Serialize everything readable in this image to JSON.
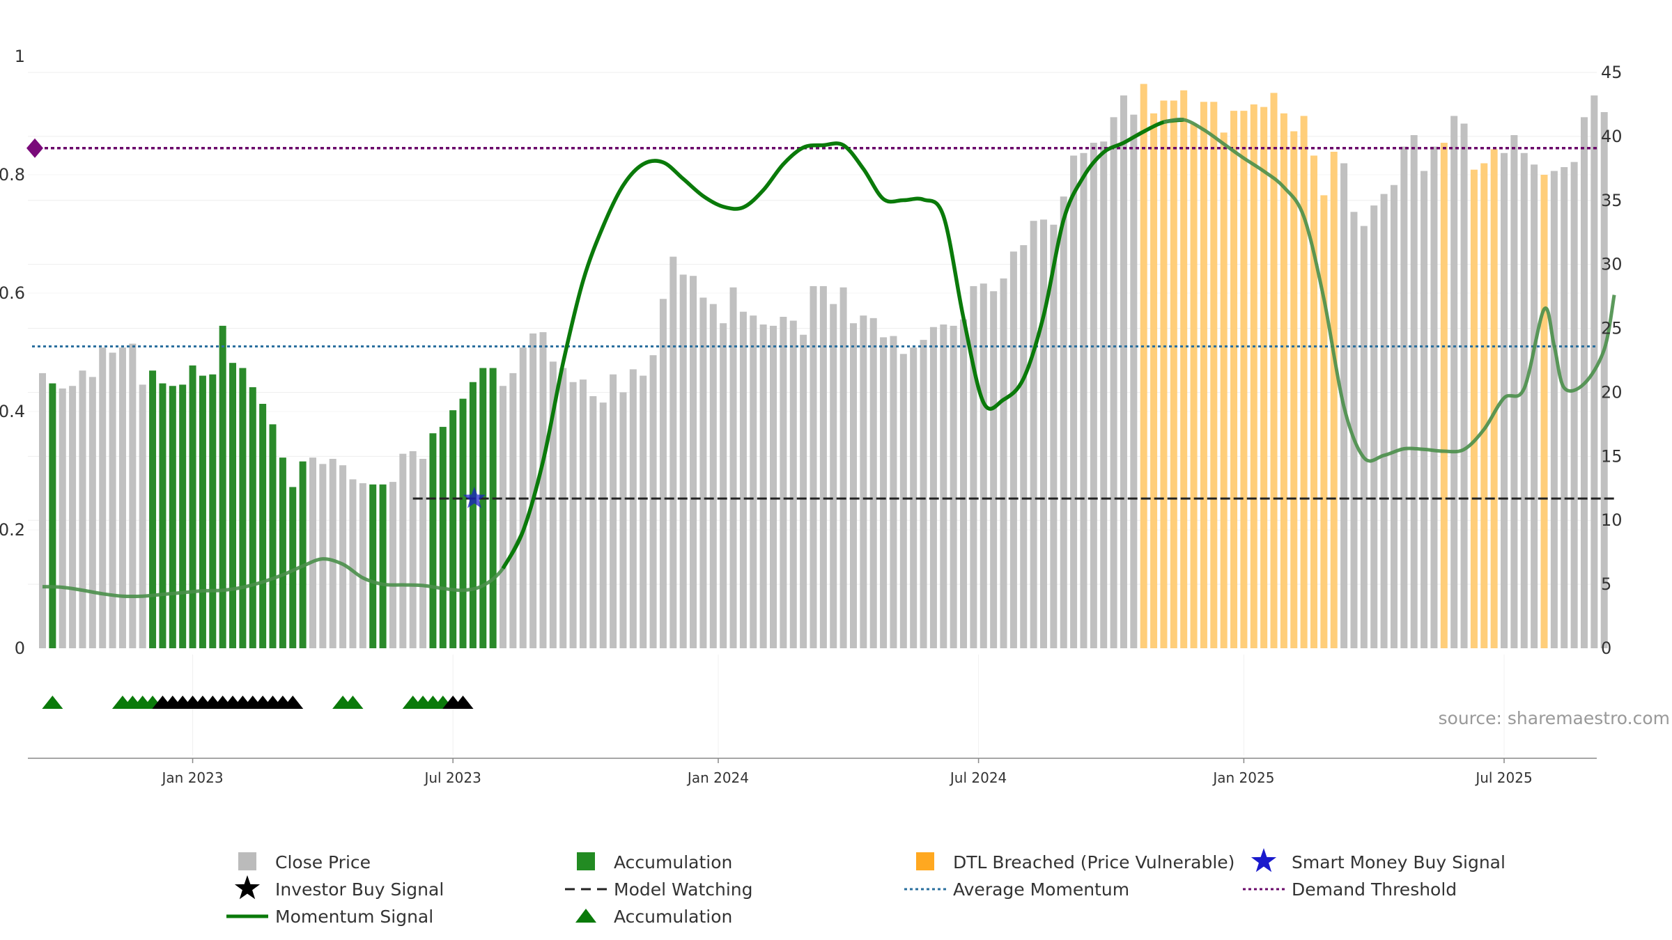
{
  "colors": {
    "close": "#c0c0c0",
    "accumulation": "#2a8a2a",
    "dtl": "#ffce7a",
    "momentum": "#0a7a0a",
    "momentum_faded": "#4a8f4a",
    "model_watching": "#222222",
    "average_momentum": "#2a6f9e",
    "demand_threshold": "#6a0a6a",
    "smart_money": "#1a1acc",
    "investor": "#000000",
    "tri_green": "#0a7a0a",
    "legend_dtl": "#ffa820"
  },
  "source": "source: sharemaestro.com",
  "chart_data": {
    "type": "bar",
    "x_axis": {
      "ticks": [
        "Jan 2023",
        "Jul 2023",
        "Jan 2024",
        "Jul 2024",
        "Jan 2025",
        "Jul 2025"
      ],
      "tick_weeks": [
        15,
        41,
        67.5,
        93.5,
        120,
        146
      ]
    },
    "left_axis": {
      "min": 0,
      "max": 1,
      "ticks": [
        0,
        0.2,
        0.4,
        0.6,
        0.8
      ],
      "top_label": "1"
    },
    "right_axis": {
      "min": 0,
      "max": 45,
      "ticks": [
        0,
        5,
        10,
        15,
        20,
        25,
        30,
        35,
        40,
        45
      ]
    },
    "bars": {
      "values": [
        21.5,
        20.7,
        20.3,
        20.5,
        21.7,
        21.2,
        23.5,
        23.1,
        23.5,
        23.8,
        20.6,
        21.7,
        20.7,
        20.5,
        20.6,
        22.1,
        21.3,
        21.4,
        25.2,
        22.3,
        21.9,
        20.4,
        19.1,
        17.5,
        14.9,
        12.6,
        14.6,
        14.9,
        14.4,
        14.8,
        14.3,
        13.2,
        12.9,
        12.8,
        12.8,
        13.0,
        15.2,
        15.4,
        14.8,
        16.8,
        17.3,
        18.6,
        19.5,
        20.8,
        21.9,
        21.9,
        20.5,
        21.5,
        23.5,
        24.6,
        24.7,
        22.4,
        21.9,
        20.8,
        21.0,
        19.7,
        19.2,
        21.4,
        20.0,
        21.8,
        21.3,
        22.9,
        27.3,
        30.6,
        29.2,
        29.1,
        27.4,
        26.9,
        25.4,
        28.2,
        26.3,
        26.0,
        25.3,
        25.2,
        25.9,
        25.6,
        24.5,
        28.3,
        28.3,
        26.9,
        28.2,
        25.4,
        26.0,
        25.8,
        24.3,
        24.4,
        23.0,
        23.5,
        24.1,
        25.1,
        25.3,
        25.2,
        25.7,
        28.3,
        28.5,
        27.9,
        28.9,
        31.0,
        31.5,
        33.4,
        33.5,
        33.1,
        35.3,
        38.5,
        38.7,
        39.5,
        39.6,
        41.5,
        43.2,
        41.7,
        44.1,
        41.8,
        42.8,
        42.8,
        43.6,
        41.0,
        42.7,
        42.7,
        40.3,
        42.0,
        42.0,
        42.5,
        42.3,
        43.4,
        41.8,
        40.4,
        41.6,
        38.5,
        35.4,
        38.8,
        37.9,
        34.1,
        33.0,
        34.6,
        35.5,
        36.2,
        39.2,
        40.1,
        37.3,
        39.2,
        39.5,
        41.6,
        41.0,
        37.4,
        37.9,
        39.0,
        38.7,
        40.1,
        38.7,
        37.8,
        37.0,
        37.3,
        37.6,
        38.0,
        41.5,
        43.2,
        41.9
      ],
      "categories_code": "GAGGGGGGGGGAAAAAAAAAAAAAAAAGGGGGGAAGGGGAAAAAAAGGGGGGGGGGGGGGGGGGGGGGGGGGGGGGGGGGGGGGGGGGGGGGGGGGGGGGGGGGGGGGGGDDDDDDDDDDDDDDDDDDDDGGGGGGGGGGDGGDDDGGGGDGGGGGGDD",
      "code_legend": {
        "G": "Close Price",
        "A": "Accumulation",
        "D": "DTL Breached (Price Vulnerable)"
      }
    },
    "momentum": {
      "left_scale": true,
      "weeks": [
        0,
        2,
        4,
        6,
        8,
        10,
        12,
        14,
        16,
        18,
        20,
        22,
        24,
        26,
        28,
        30,
        32,
        34,
        36,
        38,
        40,
        42,
        44,
        46,
        48,
        50,
        52,
        54,
        56,
        58,
        60,
        62,
        64,
        66,
        68,
        70,
        72,
        74,
        76,
        78,
        80,
        82,
        84,
        86,
        88,
        90,
        92,
        94,
        96,
        98,
        100,
        102,
        104,
        106,
        108,
        110,
        112,
        114,
        116,
        118,
        120,
        122,
        124,
        126,
        128,
        130,
        132,
        134,
        136,
        138,
        140,
        142,
        144,
        146,
        148,
        150,
        151,
        152,
        154,
        156,
        157
      ],
      "values": [
        0.104,
        0.103,
        0.098,
        0.092,
        0.088,
        0.088,
        0.091,
        0.094,
        0.097,
        0.098,
        0.103,
        0.112,
        0.124,
        0.139,
        0.151,
        0.142,
        0.119,
        0.108,
        0.107,
        0.106,
        0.101,
        0.098,
        0.106,
        0.135,
        0.198,
        0.316,
        0.482,
        0.621,
        0.713,
        0.782,
        0.818,
        0.821,
        0.793,
        0.764,
        0.746,
        0.745,
        0.774,
        0.818,
        0.846,
        0.85,
        0.85,
        0.81,
        0.759,
        0.757,
        0.758,
        0.73,
        0.558,
        0.415,
        0.42,
        0.456,
        0.562,
        0.724,
        0.797,
        0.838,
        0.854,
        0.873,
        0.889,
        0.893,
        0.876,
        0.852,
        0.828,
        0.806,
        0.779,
        0.729,
        0.59,
        0.408,
        0.322,
        0.326,
        0.337,
        0.336,
        0.333,
        0.336,
        0.37,
        0.423,
        0.439,
        0.573,
        0.511,
        0.44,
        0.447,
        0.505,
        0.597
      ],
      "faded_ranges": [
        [
          0,
          47
        ],
        [
          112,
          158
        ]
      ]
    },
    "average_momentum": 0.51,
    "demand_threshold": 0.845,
    "model_watching": {
      "value": 11.7,
      "from_week": 37,
      "to_week": 157
    },
    "smart_money_signal": {
      "week": 43,
      "value": 11.7
    },
    "signal_row": {
      "accumulation_weeks": [
        1,
        8,
        9,
        10,
        11,
        30,
        31,
        37,
        38,
        39,
        40
      ],
      "investor_weeks": [
        12,
        13,
        14,
        15,
        16,
        17,
        18,
        19,
        20,
        21,
        22,
        23,
        24,
        25,
        41,
        42
      ]
    }
  },
  "legend": [
    {
      "label": "Close Price",
      "marker": "square-gray"
    },
    {
      "label": "Accumulation",
      "marker": "square-green"
    },
    {
      "label": "DTL Breached (Price Vulnerable)",
      "marker": "square-orange"
    },
    {
      "label": "Smart Money Buy Signal",
      "marker": "star-blue"
    },
    {
      "label": "Investor Buy Signal",
      "marker": "star-black"
    },
    {
      "label": "Model Watching",
      "marker": "dashed-black"
    },
    {
      "label": "Average Momentum",
      "marker": "dotted-blue"
    },
    {
      "label": "Demand Threshold",
      "marker": "dotted-purple"
    },
    {
      "label": "Momentum Signal",
      "marker": "line-green"
    },
    {
      "label": "Accumulation",
      "marker": "triangle-green"
    }
  ]
}
